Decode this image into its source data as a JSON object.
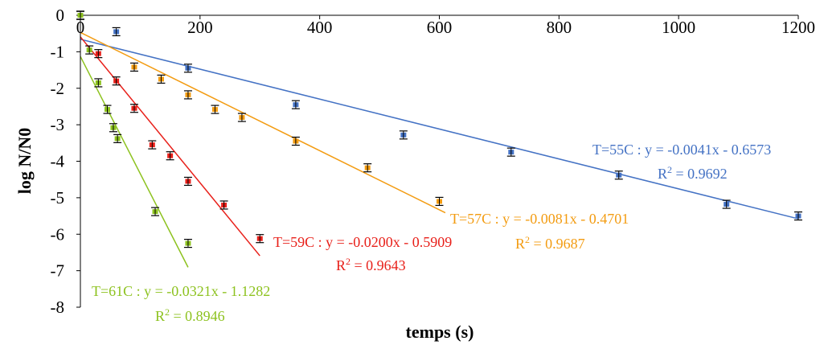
{
  "chart_data": {
    "type": "scatter",
    "xlabel": "temps (s)",
    "ylabel": "log N/N0",
    "xlim": [
      0,
      1200
    ],
    "ylim": [
      -8,
      0
    ],
    "x_ticks": [
      0,
      200,
      400,
      600,
      800,
      1000,
      1200
    ],
    "y_ticks": [
      0,
      -1,
      -2,
      -3,
      -4,
      -5,
      -6,
      -7,
      -8
    ],
    "grid": false,
    "legend": "none",
    "series": [
      {
        "color": "#4472C4",
        "points": [
          [
            0,
            0
          ],
          [
            60,
            -0.45
          ],
          [
            180,
            -1.45
          ],
          [
            360,
            -2.45
          ],
          [
            540,
            -3.28
          ],
          [
            720,
            -3.75
          ],
          [
            900,
            -4.38
          ],
          [
            1080,
            -5.18
          ],
          [
            1200,
            -5.5
          ]
        ],
        "fit": {
          "slope": -0.0041,
          "intercept": -0.6573,
          "x_range": [
            0,
            1200
          ]
        },
        "equation": "T=55C : y = -0.0041x - 0.6573",
        "r2_prefix": "R",
        "r2_sup": "2",
        "r2_value": " = 0.9692"
      },
      {
        "color": "#F39C12",
        "points": [
          [
            0,
            0
          ],
          [
            90,
            -1.42
          ],
          [
            135,
            -1.75
          ],
          [
            180,
            -2.18
          ],
          [
            225,
            -2.58
          ],
          [
            270,
            -2.8
          ],
          [
            360,
            -3.45
          ],
          [
            480,
            -4.18
          ],
          [
            600,
            -5.1
          ]
        ],
        "fit": {
          "slope": -0.0081,
          "intercept": -0.4701,
          "x_range": [
            0,
            610
          ]
        },
        "equation": "T=57C : y = -0.0081x - 0.4701",
        "r2_prefix": "R",
        "r2_sup": "2",
        "r2_value": " = 0.9687"
      },
      {
        "color": "#E8201A",
        "points": [
          [
            0,
            0
          ],
          [
            30,
            -1.05
          ],
          [
            60,
            -1.8
          ],
          [
            90,
            -2.55
          ],
          [
            120,
            -3.55
          ],
          [
            150,
            -3.85
          ],
          [
            180,
            -4.55
          ],
          [
            240,
            -5.2
          ],
          [
            300,
            -6.12
          ]
        ],
        "fit": {
          "slope": -0.02,
          "intercept": -0.5909,
          "x_range": [
            0,
            300
          ]
        },
        "equation": "T=59C : y = -0.0200x - 0.5909",
        "r2_prefix": "R",
        "r2_sup": "2",
        "r2_value": " = 0.9643"
      },
      {
        "color": "#8DC21F",
        "points": [
          [
            0,
            0
          ],
          [
            15,
            -0.95
          ],
          [
            30,
            -1.85
          ],
          [
            45,
            -2.58
          ],
          [
            55,
            -3.08
          ],
          [
            62,
            -3.38
          ],
          [
            125,
            -5.38
          ],
          [
            180,
            -6.25
          ]
        ],
        "fit": {
          "slope": -0.0321,
          "intercept": -1.1282,
          "x_range": [
            0,
            180
          ]
        },
        "equation": "T=61C : y = -0.0321x - 1.1282",
        "r2_prefix": "R",
        "r2_sup": "2",
        "r2_value": " = 0.8946"
      }
    ]
  }
}
